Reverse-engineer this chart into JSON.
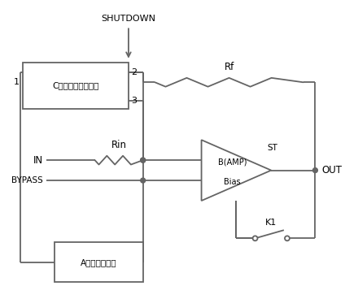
{
  "background": "#ffffff",
  "line_color": "#646464",
  "box_C_label": "C（延迟控制电路）",
  "box_A_label": "A（偏置电路）",
  "shutdown_text": "SHUTDOWN",
  "pin1_text": "1",
  "pin2_text": "2",
  "pin3_text": "3",
  "Rf_text": "Rf",
  "Rin_text": "Rin",
  "IN_text": "IN",
  "BYPASS_text": "BYPASS",
  "ST_text": "ST",
  "BAMP_text": "B(AMP)",
  "Bias_text": "Bias",
  "OUT_text": "OUT",
  "K1_text": "K1"
}
